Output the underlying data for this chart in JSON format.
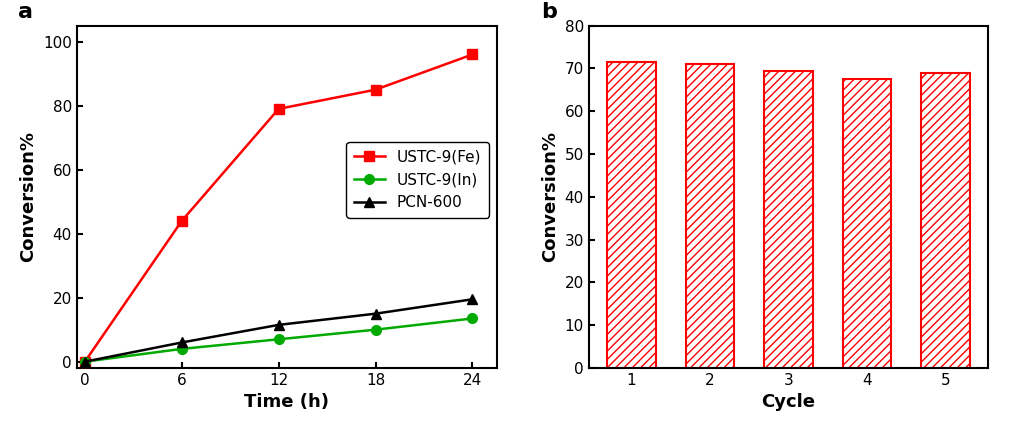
{
  "panel_a": {
    "label": "a",
    "time": [
      0,
      6,
      12,
      18,
      24
    ],
    "fe_values": [
      0,
      44,
      79,
      85,
      96
    ],
    "in_values": [
      0,
      4,
      7,
      10,
      13.5
    ],
    "pcn_values": [
      0,
      6,
      11.5,
      15,
      19.5
    ],
    "fe_color": "#ff0000",
    "in_color": "#00aa00",
    "pcn_color": "#000000",
    "xlabel": "Time (h)",
    "ylabel": "Conversion%",
    "ylim": [
      -2,
      105
    ],
    "xlim": [
      -0.5,
      25.5
    ],
    "xticks": [
      0,
      6,
      12,
      18,
      24
    ],
    "yticks": [
      0,
      20,
      40,
      60,
      80,
      100
    ],
    "legend_fe": "USTC-9(Fe)",
    "legend_in": "USTC-9(In)",
    "legend_pcn": "PCN-600"
  },
  "panel_b": {
    "label": "b",
    "cycles": [
      1,
      2,
      3,
      4,
      5
    ],
    "values": [
      71.5,
      71.0,
      69.5,
      67.5,
      69.0
    ],
    "bar_color": "#ff0000",
    "xlabel": "Cycle",
    "ylabel": "Conversion%",
    "ylim": [
      0,
      80
    ],
    "yticks": [
      0,
      10,
      20,
      30,
      40,
      50,
      60,
      70,
      80
    ],
    "hatch": "////"
  },
  "background_color": "#ffffff",
  "panel_label_fontsize": 16,
  "axis_label_fontsize": 13,
  "tick_fontsize": 11,
  "legend_fontsize": 11,
  "line_width": 1.8,
  "marker_size": 7
}
